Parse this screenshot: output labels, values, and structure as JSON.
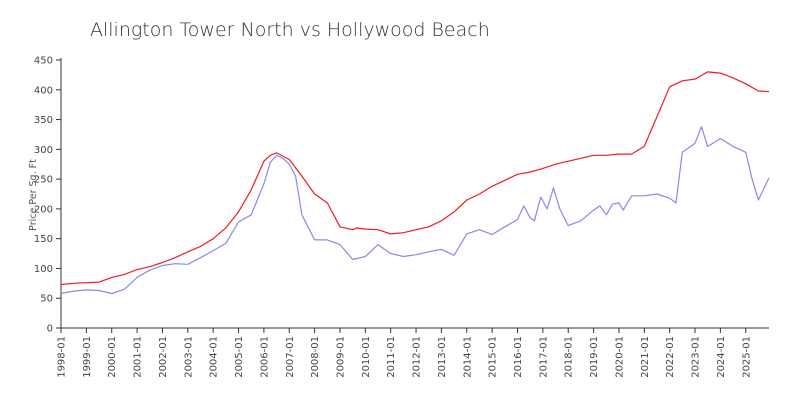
{
  "chart_data": {
    "type": "line",
    "title": "Allington Tower North vs Hollywood Beach",
    "xlabel": "",
    "ylabel": "Price Per Sq. Ft",
    "ylim": [
      0,
      450
    ],
    "yticks": [
      0,
      50,
      100,
      150,
      200,
      250,
      300,
      350,
      400,
      450
    ],
    "xlim": [
      "1998-01",
      "2025-12"
    ],
    "xticks": [
      "1998-01",
      "1999-01",
      "2000-01",
      "2001-01",
      "2002-01",
      "2003-01",
      "2004-01",
      "2005-01",
      "2006-01",
      "2007-01",
      "2008-01",
      "2009-01",
      "2010-01",
      "2011-01",
      "2012-01",
      "2013-01",
      "2014-01",
      "2015-01",
      "2016-01",
      "2017-01",
      "2018-01",
      "2019-01",
      "2020-01",
      "2021-01",
      "2022-01",
      "2023-01",
      "2024-01",
      "2025-01"
    ],
    "grid": false,
    "legend": "none",
    "series": [
      {
        "color": "#ee1c25",
        "x": [
          "1998-01",
          "1998-07",
          "1999-01",
          "1999-07",
          "2000-01",
          "2000-07",
          "2001-01",
          "2001-07",
          "2002-01",
          "2002-07",
          "2003-01",
          "2003-07",
          "2004-01",
          "2004-07",
          "2005-01",
          "2005-07",
          "2006-01",
          "2006-04",
          "2006-07",
          "2007-01",
          "2007-07",
          "2008-01",
          "2008-07",
          "2009-01",
          "2009-07",
          "2009-09",
          "2010-01",
          "2010-07",
          "2011-01",
          "2011-07",
          "2012-01",
          "2012-07",
          "2013-01",
          "2013-07",
          "2014-01",
          "2014-07",
          "2015-01",
          "2015-07",
          "2016-01",
          "2016-07",
          "2017-01",
          "2017-07",
          "2018-01",
          "2018-07",
          "2019-01",
          "2019-07",
          "2020-01",
          "2020-07",
          "2021-01",
          "2021-04",
          "2021-07",
          "2022-01",
          "2022-07",
          "2023-01",
          "2023-07",
          "2024-01",
          "2024-07",
          "2025-01",
          "2025-07",
          "2025-12"
        ],
        "values": [
          73,
          75,
          76,
          77,
          85,
          90,
          98,
          103,
          110,
          118,
          128,
          137,
          150,
          168,
          195,
          232,
          280,
          290,
          294,
          283,
          255,
          225,
          210,
          170,
          165,
          168,
          166,
          165,
          158,
          160,
          165,
          170,
          180,
          195,
          215,
          225,
          238,
          248,
          258,
          262,
          268,
          275,
          280,
          285,
          290,
          290,
          292,
          292,
          305,
          330,
          355,
          405,
          415,
          418,
          430,
          428,
          420,
          410,
          398,
          397
        ]
      },
      {
        "color": "#8888ee",
        "x": [
          "1998-01",
          "1998-07",
          "1999-01",
          "1999-07",
          "2000-01",
          "2000-07",
          "2001-01",
          "2001-07",
          "2002-01",
          "2002-07",
          "2003-01",
          "2003-07",
          "2004-01",
          "2004-07",
          "2005-01",
          "2005-07",
          "2006-01",
          "2006-04",
          "2006-07",
          "2006-10",
          "2007-01",
          "2007-04",
          "2007-07",
          "2008-01",
          "2008-07",
          "2009-01",
          "2009-07",
          "2010-01",
          "2010-07",
          "2011-01",
          "2011-07",
          "2012-01",
          "2012-07",
          "2013-01",
          "2013-07",
          "2014-01",
          "2014-07",
          "2015-01",
          "2015-07",
          "2016-01",
          "2016-04",
          "2016-07",
          "2016-09",
          "2016-12",
          "2017-03",
          "2017-06",
          "2017-09",
          "2018-01",
          "2018-07",
          "2019-01",
          "2019-04",
          "2019-07",
          "2019-10",
          "2020-01",
          "2020-03",
          "2020-07",
          "2021-01",
          "2021-07",
          "2022-01",
          "2022-04",
          "2022-07",
          "2023-01",
          "2023-04",
          "2023-07",
          "2024-01",
          "2024-07",
          "2025-01",
          "2025-04",
          "2025-07",
          "2025-12"
        ],
        "values": [
          58,
          62,
          64,
          63,
          58,
          65,
          85,
          97,
          105,
          108,
          107,
          118,
          130,
          142,
          178,
          190,
          242,
          278,
          290,
          285,
          275,
          255,
          190,
          148,
          148,
          140,
          115,
          120,
          140,
          125,
          120,
          123,
          128,
          132,
          122,
          158,
          165,
          157,
          170,
          182,
          205,
          185,
          180,
          220,
          200,
          235,
          200,
          172,
          180,
          198,
          205,
          190,
          208,
          210,
          198,
          222,
          222,
          225,
          218,
          210,
          295,
          310,
          338,
          305,
          318,
          305,
          295,
          250,
          215,
          252
        ]
      }
    ]
  }
}
